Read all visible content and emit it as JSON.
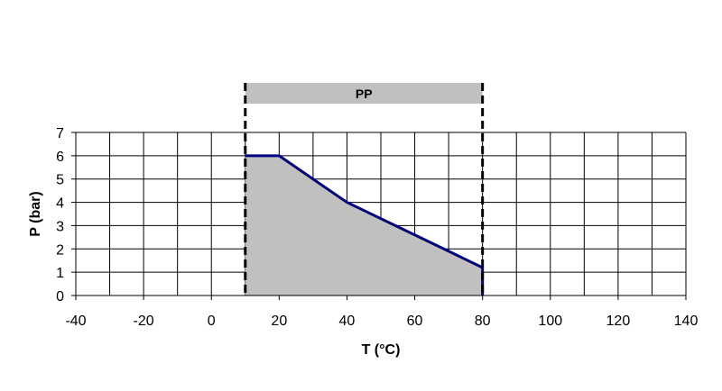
{
  "chart_data": {
    "type": "area",
    "xlabel": "T (°C)",
    "ylabel": "P (bar)",
    "xlim": [
      -40,
      140
    ],
    "ylim": [
      0,
      7
    ],
    "x_ticks": [
      -40,
      -20,
      0,
      20,
      40,
      60,
      80,
      100,
      120,
      140
    ],
    "y_ticks": [
      0,
      1,
      2,
      3,
      4,
      5,
      6,
      7
    ],
    "x_grid_step": 10,
    "grid": true,
    "material_band": {
      "label": "PP",
      "range": [
        10,
        80
      ],
      "color": "#c0c0c0"
    },
    "series": [
      {
        "color": "#000080",
        "fill_color": "#c0c0c0",
        "points": [
          [
            10,
            6
          ],
          [
            20,
            6
          ],
          [
            40,
            4
          ],
          [
            60,
            2.6
          ],
          [
            80,
            1.2
          ],
          [
            80,
            0
          ]
        ]
      }
    ]
  }
}
